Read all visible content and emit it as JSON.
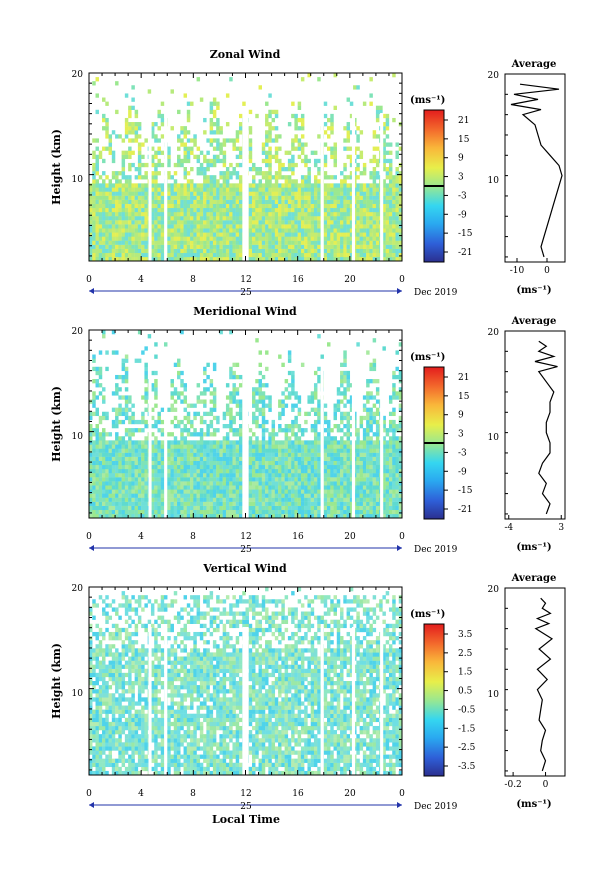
{
  "date_label": "Dec 2019",
  "day_label": "25",
  "xlabel_bottom": "Local Time",
  "colorbar_unit": "(ms⁻¹)",
  "average_title": "Average",
  "average_unit": "(ms⁻¹)",
  "chart_data": [
    {
      "type": "heatmap",
      "title": "Zonal Wind",
      "ylabel": "Height (km)",
      "x_ticks": [
        "0",
        "4",
        "8",
        "12",
        "16",
        "20",
        "0"
      ],
      "xlim_hours": [
        0,
        24
      ],
      "y_ticks": [
        10,
        20
      ],
      "ylim_km": [
        1.5,
        20
      ],
      "colorbar_ticks": [
        "21",
        "15",
        "9",
        "3",
        "-3",
        "-9",
        "-15",
        "-21"
      ],
      "colorbar_range": [
        -24,
        24
      ],
      "base_color": "#9be88f",
      "average_profile": {
        "xlim": [
          -14,
          6
        ],
        "x_ticks": [
          -10,
          0
        ],
        "height": [
          2,
          3,
          4,
          5,
          6,
          7,
          8,
          9,
          10,
          11,
          12,
          13,
          14,
          15,
          16,
          16.5,
          17,
          17.5,
          18,
          18.5,
          19
        ],
        "value": [
          -1,
          -2,
          -1,
          0,
          1,
          2,
          3,
          4,
          5,
          4,
          1,
          -2,
          -3,
          -4,
          -8,
          -2,
          -12,
          -3,
          -11,
          4,
          -9
        ]
      }
    },
    {
      "type": "heatmap",
      "title": "Meridional Wind",
      "ylabel": "Height (km)",
      "x_ticks": [
        "0",
        "4",
        "8",
        "12",
        "16",
        "20",
        "0"
      ],
      "xlim_hours": [
        0,
        24
      ],
      "y_ticks": [
        10,
        20
      ],
      "ylim_km": [
        1.5,
        20
      ],
      "colorbar_ticks": [
        "21",
        "15",
        "9",
        "3",
        "-3",
        "-9",
        "-15",
        "-21"
      ],
      "colorbar_range": [
        -24,
        24
      ],
      "base_color": "#7fe3b8",
      "average_profile": {
        "xlim": [
          -4.5,
          3.5
        ],
        "x_ticks": [
          -4,
          3
        ],
        "height": [
          2,
          3,
          4,
          5,
          6,
          7,
          8,
          9,
          10,
          11,
          12,
          13,
          14,
          15,
          16,
          16.5,
          17,
          17.5,
          18,
          18.5,
          19
        ],
        "value": [
          1,
          1.5,
          0.5,
          1,
          0,
          0.5,
          1.5,
          1.5,
          1,
          1,
          1.5,
          1.5,
          2,
          1,
          0,
          2.5,
          -0.5,
          2,
          0,
          1,
          0
        ]
      }
    },
    {
      "type": "heatmap",
      "title": "Vertical Wind",
      "ylabel": "Height (km)",
      "x_ticks": [
        "0",
        "4",
        "8",
        "12",
        "16",
        "20",
        "0"
      ],
      "xlim_hours": [
        0,
        24
      ],
      "y_ticks": [
        10,
        20
      ],
      "ylim_km": [
        1.5,
        20
      ],
      "colorbar_ticks": [
        "3.5",
        "2.5",
        "1.5",
        "0.5",
        "-0.5",
        "-1.5",
        "-2.5",
        "-3.5"
      ],
      "colorbar_range": [
        -4,
        4
      ],
      "base_color": "#8fe8c4",
      "average_profile": {
        "xlim": [
          -0.25,
          0.12
        ],
        "x_ticks": [
          -0.2,
          0.0
        ],
        "height": [
          2,
          3,
          4,
          5,
          6,
          7,
          8,
          9,
          10,
          11,
          12,
          13,
          14,
          15,
          16,
          16.5,
          17,
          17.5,
          18,
          18.5,
          19
        ],
        "value": [
          -0.02,
          0,
          -0.03,
          -0.02,
          0,
          -0.04,
          -0.03,
          -0.02,
          -0.05,
          0.01,
          -0.05,
          0.03,
          -0.04,
          0.04,
          -0.06,
          0.02,
          -0.05,
          0.03,
          -0.02,
          0,
          -0.03
        ]
      }
    }
  ]
}
